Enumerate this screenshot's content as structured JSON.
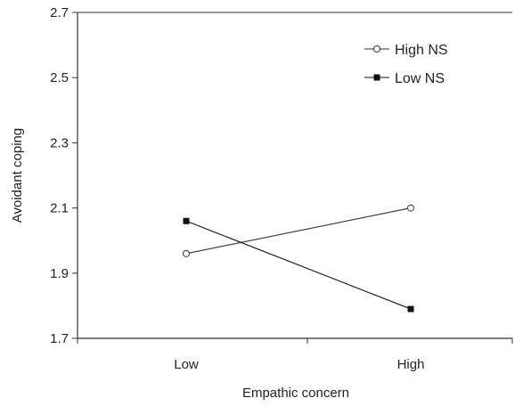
{
  "chart_data": {
    "type": "line",
    "title": "",
    "xlabel": "Empathic concern",
    "ylabel": "Avoidant coping",
    "categories": [
      "Low",
      "High"
    ],
    "ylim": [
      1.7,
      2.7
    ],
    "yticks": [
      "2.7",
      "2.5",
      "2.3",
      "2.1",
      "1.9",
      "1.7"
    ],
    "grid": false,
    "legend_position": "top-right",
    "series": [
      {
        "name": "High NS",
        "values": [
          1.96,
          2.1
        ],
        "marker": "open-circle",
        "color": "#333333"
      },
      {
        "name": "Low NS",
        "values": [
          2.06,
          1.79
        ],
        "marker": "filled-square",
        "color": "#111111"
      }
    ]
  }
}
